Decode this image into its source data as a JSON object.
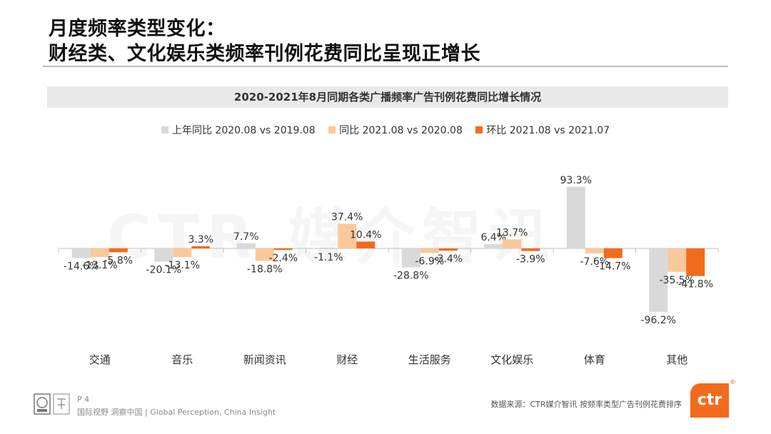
{
  "slide": {
    "title_line1": "月度频率类型变化：",
    "title_line2": "财经类、文化娱乐类频率刊例花费同比呈现正增长",
    "watermark": "CTR 媒介智讯",
    "page_number": "P 4",
    "slogan": "国际视野  洞察中国 | Global Perception, China Insight",
    "source": "数据来源：CTR媒介智讯  按频率类型广告刊例花费排序",
    "brand": "ctr",
    "brand_mark": "®"
  },
  "colors": {
    "series_yoy_prev": "#d9d9d9",
    "series_yoy": "#fbc89a",
    "series_mom": "#f26b1d",
    "axis": "#bfbfbf",
    "brand": "#f26b1d"
  },
  "chart_data": {
    "type": "bar",
    "title": "2020-2021年8月同期各类广播频率广告刊例花费同比增长情况",
    "categories": [
      "交通",
      "音乐",
      "新闻资讯",
      "财经",
      "生活服务",
      "文化娱乐",
      "体育",
      "其他"
    ],
    "series": [
      {
        "name": "上年同比 2020.08 vs 2019.08",
        "values": [
          -14.6,
          -20.1,
          7.7,
          -1.1,
          -28.8,
          6.4,
          93.3,
          -96.2
        ]
      },
      {
        "name": "同比 2021.08 vs 2020.08",
        "values": [
          -13.1,
          -13.1,
          -18.8,
          37.4,
          -6.9,
          13.7,
          -7.6,
          -35.5
        ]
      },
      {
        "name": "环比 2021.08 vs 2021.07",
        "values": [
          -5.8,
          3.3,
          -2.4,
          10.4,
          -3.4,
          -3.9,
          -14.7,
          -41.8
        ]
      }
    ],
    "unit": "%",
    "legend_position": "top",
    "grid": false,
    "ylim": [
      -100,
      100
    ]
  }
}
